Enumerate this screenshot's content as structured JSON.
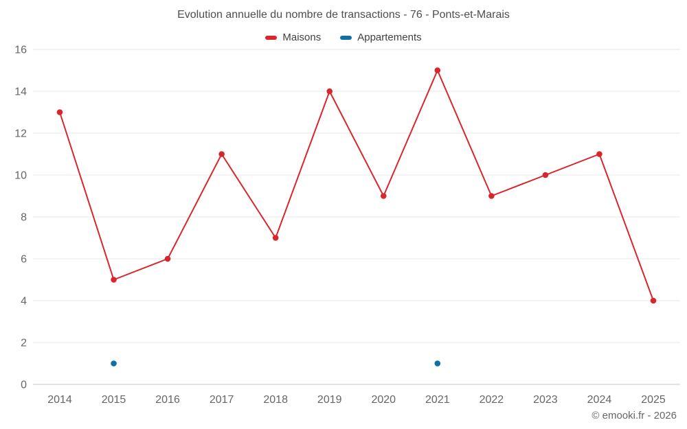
{
  "title": "Evolution annuelle du nombre de transactions - 76 - Ponts-et-Marais",
  "footer": "© emooki.fr - 2026",
  "legend": [
    {
      "label": "Maisons",
      "color": "#d8262c"
    },
    {
      "label": "Appartements",
      "color": "#1170a3"
    }
  ],
  "chart_data": {
    "type": "line",
    "title": "Evolution annuelle du nombre de transactions - 76 - Ponts-et-Marais",
    "x": [
      2014,
      2015,
      2016,
      2017,
      2018,
      2019,
      2020,
      2021,
      2022,
      2023,
      2024,
      2025
    ],
    "series": [
      {
        "name": "Maisons",
        "color": "#d8262c",
        "values": [
          13,
          5,
          6,
          11,
          7,
          14,
          9,
          15,
          9,
          10,
          11,
          4
        ]
      },
      {
        "name": "Appartements",
        "color": "#1170a3",
        "values": [
          null,
          1,
          null,
          null,
          null,
          null,
          null,
          1,
          null,
          null,
          null,
          null
        ]
      }
    ],
    "xlabel": "",
    "ylabel": "",
    "ylim": [
      0,
      16
    ],
    "ytick_step": 2,
    "grid": true,
    "legend_position": "top"
  }
}
